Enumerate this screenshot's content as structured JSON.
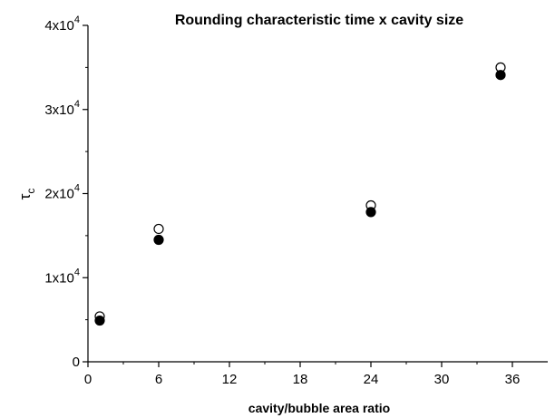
{
  "chart_data": {
    "type": "scatter",
    "title": "Rounding characteristic time x cavity size",
    "xlabel": "cavity/bubble area ratio",
    "ylabel": "τ",
    "ylabel_subscript": "c",
    "xlim": [
      0,
      39
    ],
    "ylim": [
      0,
      40000
    ],
    "x_ticks": [
      0,
      6,
      12,
      18,
      24,
      30,
      36
    ],
    "x_tick_labels": [
      "0",
      "6",
      "12",
      "18",
      "24",
      "30",
      "36"
    ],
    "y_ticks": [
      0,
      10000,
      20000,
      30000,
      40000
    ],
    "y_tick_labels": [
      {
        "mantissa": "0",
        "exp": ""
      },
      {
        "mantissa": "1x10",
        "exp": "4"
      },
      {
        "mantissa": "2x10",
        "exp": "4"
      },
      {
        "mantissa": "3x10",
        "exp": "4"
      },
      {
        "mantissa": "4x10",
        "exp": "4"
      }
    ],
    "grid": false,
    "legend": false,
    "series": [
      {
        "marker": "open-circle",
        "color": "#000000",
        "x": [
          1,
          6,
          24,
          35
        ],
        "y": [
          5400,
          15800,
          18600,
          35000
        ]
      },
      {
        "marker": "filled-circle",
        "color": "#000000",
        "x": [
          1,
          6,
          24,
          35
        ],
        "y": [
          4900,
          14500,
          17800,
          34100
        ]
      }
    ]
  }
}
